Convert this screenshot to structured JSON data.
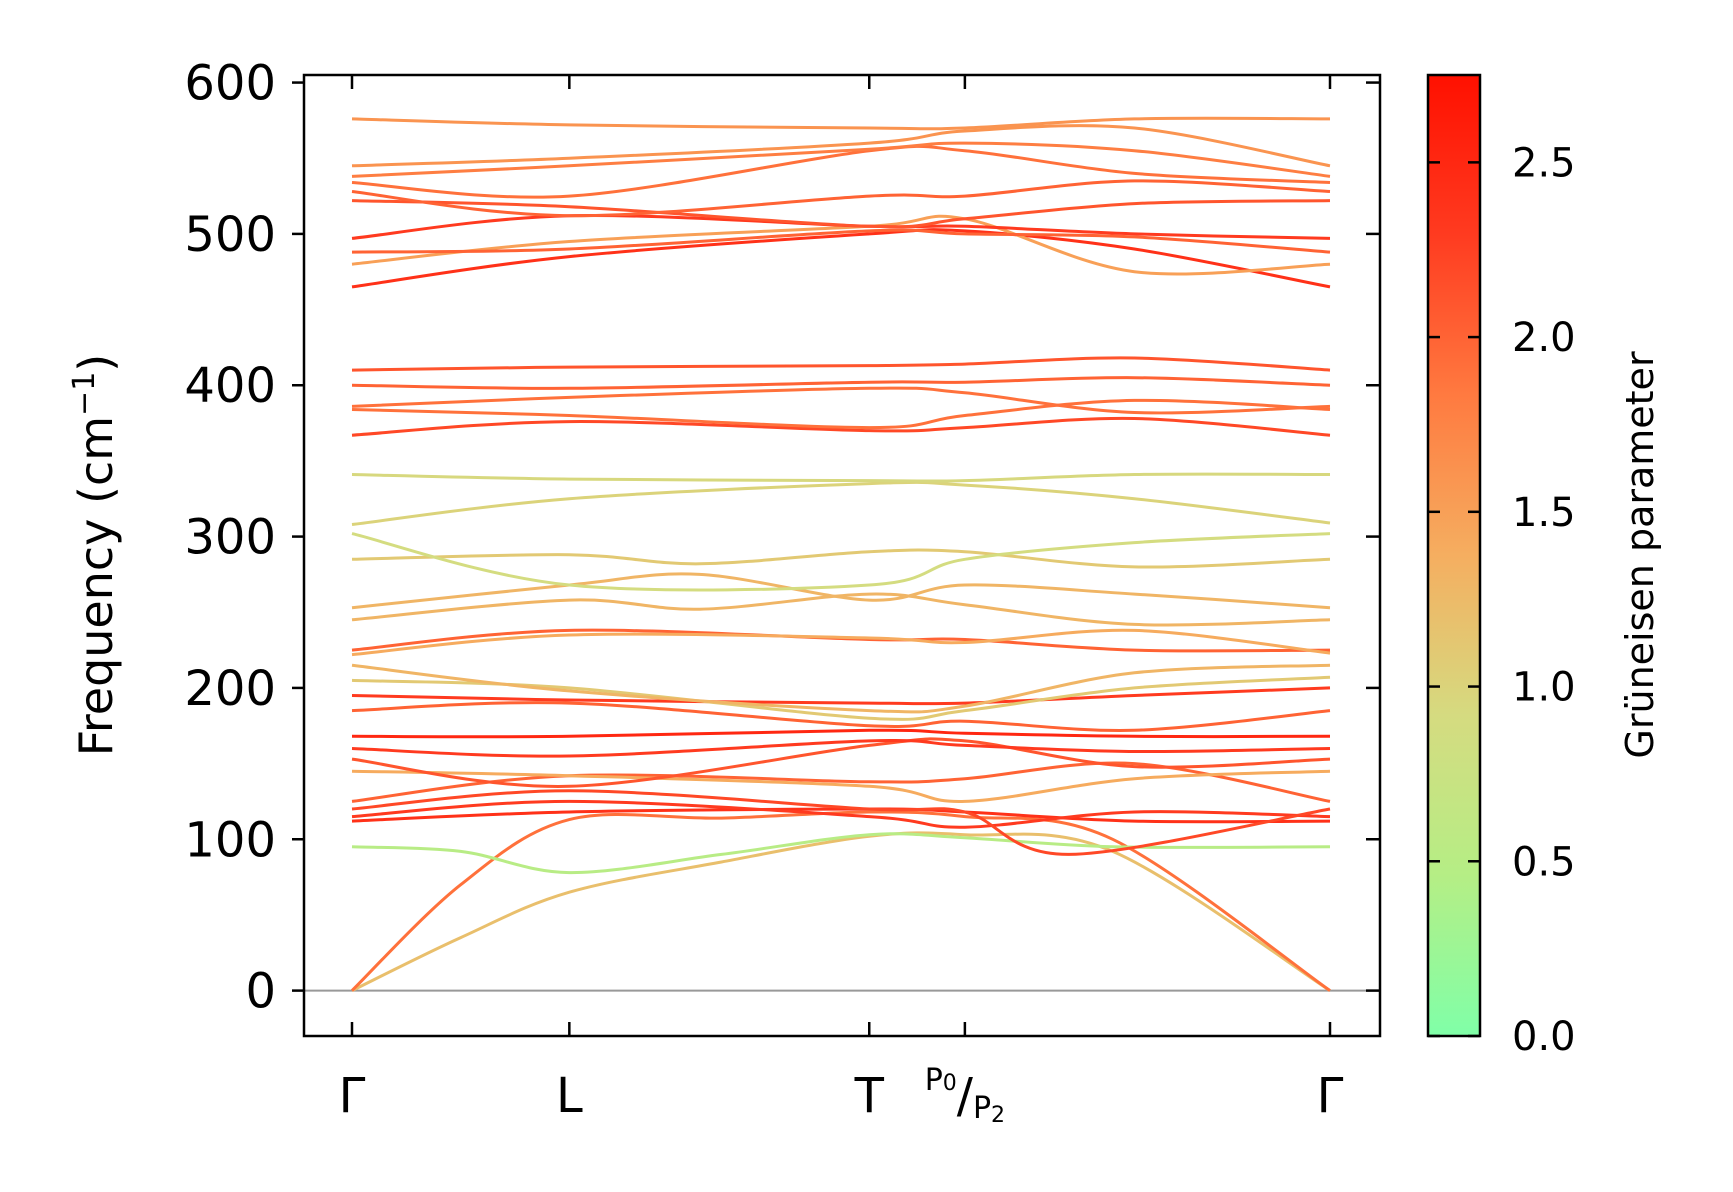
{
  "chart_data": {
    "type": "line",
    "title": "",
    "xlabel": "",
    "ylabel": "Frequency (cm",
    "ylabel_exp": "−1",
    "ylabel_close": ")",
    "ylim": [
      -30,
      605
    ],
    "yticks": [
      0,
      100,
      200,
      300,
      400,
      500,
      600
    ],
    "x_points": [
      0,
      1,
      2.38,
      2.82,
      4.5
    ],
    "x_labels": [
      "Γ",
      "L",
      "T",
      "P0/P2",
      "Γ"
    ],
    "x_label_special": {
      "p0": "P",
      "p0_sub": "0",
      "slash": "/",
      "p2": "P",
      "p2_sub": "2"
    },
    "colorbar": {
      "label": "Grüneisen parameter",
      "range": [
        0.0,
        2.75
      ],
      "ticks": [
        "0.0",
        "0.5",
        "1.0",
        "1.5",
        "2.0",
        "2.5"
      ],
      "tick_values": [
        0.0,
        0.5,
        1.0,
        1.5,
        2.0,
        2.5
      ],
      "colors": [
        "#80ffa8",
        "#b5ee85",
        "#d5db80",
        "#f5ae60",
        "#ff7a40",
        "#ff3b20",
        "#ff1000"
      ]
    },
    "series": [
      {
        "name": "band-1",
        "g": 1.2,
        "x": [
          0,
          0.5,
          1,
          1.7,
          2.38,
          2.82,
          3.5,
          4.5
        ],
        "y": [
          0,
          35,
          65,
          85,
          102,
          103,
          92,
          0
        ]
      },
      {
        "name": "band-2",
        "g": 1.9,
        "x": [
          0,
          0.5,
          1,
          1.7,
          2.38,
          2.82,
          3.5,
          4.5
        ],
        "y": [
          0,
          70,
          113,
          114,
          118,
          115,
          100,
          0
        ]
      },
      {
        "name": "band-3",
        "g": 0.5,
        "x": [
          0,
          0.5,
          1,
          1.7,
          2.38,
          2.82,
          3.5,
          4.5
        ],
        "y": [
          95,
          92,
          78,
          90,
          103,
          101,
          95,
          95
        ]
      },
      {
        "name": "band-4",
        "g": 2.4,
        "x": [
          0,
          1,
          2.38,
          2.82,
          3.6,
          4.5
        ],
        "y": [
          112,
          118,
          120,
          118,
          112,
          112
        ]
      },
      {
        "name": "band-5",
        "g": 2.3,
        "x": [
          0,
          1,
          2.38,
          2.82,
          3.6,
          4.5
        ],
        "y": [
          115,
          125,
          115,
          108,
          118,
          115
        ]
      },
      {
        "name": "band-6",
        "g": 2.2,
        "x": [
          0,
          1,
          2.38,
          2.82,
          3.3,
          4.5
        ],
        "y": [
          120,
          132,
          120,
          118,
          90,
          120
        ]
      },
      {
        "name": "band-7",
        "g": 2.0,
        "x": [
          0,
          1,
          2.38,
          2.82,
          3.6,
          4.5
        ],
        "y": [
          125,
          142,
          138,
          140,
          150,
          125
        ]
      },
      {
        "name": "band-8",
        "g": 1.4,
        "x": [
          0,
          1,
          2.38,
          2.82,
          3.6,
          4.5
        ],
        "y": [
          145,
          142,
          135,
          125,
          140,
          145
        ]
      },
      {
        "name": "band-9",
        "g": 2.1,
        "x": [
          0,
          1,
          2.38,
          2.82,
          3.6,
          4.5
        ],
        "y": [
          153,
          135,
          162,
          165,
          148,
          153
        ]
      },
      {
        "name": "band-10",
        "g": 2.3,
        "x": [
          0,
          1,
          2.38,
          2.82,
          3.6,
          4.5
        ],
        "y": [
          160,
          155,
          165,
          162,
          158,
          160
        ]
      },
      {
        "name": "band-11",
        "g": 2.5,
        "x": [
          0,
          1,
          2.38,
          2.82,
          3.6,
          4.5
        ],
        "y": [
          168,
          168,
          172,
          170,
          168,
          168
        ]
      },
      {
        "name": "band-12",
        "g": 2.0,
        "x": [
          0,
          1,
          2.38,
          2.82,
          3.6,
          4.5
        ],
        "y": [
          185,
          190,
          175,
          178,
          172,
          185
        ]
      },
      {
        "name": "band-13",
        "g": 2.3,
        "x": [
          0,
          1,
          2.38,
          2.82,
          3.6,
          4.5
        ],
        "y": [
          195,
          192,
          190,
          190,
          195,
          200
        ]
      },
      {
        "name": "band-14",
        "g": 1.1,
        "x": [
          0,
          1,
          2.38,
          2.82,
          3.6,
          4.5
        ],
        "y": [
          205,
          200,
          180,
          185,
          200,
          207
        ]
      },
      {
        "name": "band-15",
        "g": 1.3,
        "x": [
          0,
          1,
          2.38,
          2.82,
          3.6,
          4.5
        ],
        "y": [
          215,
          198,
          185,
          188,
          210,
          215
        ]
      },
      {
        "name": "band-16",
        "g": 2.0,
        "x": [
          0,
          1,
          2.38,
          2.82,
          3.6,
          4.5
        ],
        "y": [
          225,
          238,
          232,
          232,
          225,
          225
        ]
      },
      {
        "name": "band-17",
        "g": 1.4,
        "x": [
          0,
          1,
          2.38,
          2.82,
          3.6,
          4.5
        ],
        "y": [
          222,
          235,
          233,
          230,
          238,
          223
        ]
      },
      {
        "name": "band-18",
        "g": 1.3,
        "x": [
          0,
          1,
          1.6,
          2.38,
          2.82,
          3.6,
          4.5
        ],
        "y": [
          245,
          258,
          252,
          262,
          255,
          242,
          245
        ]
      },
      {
        "name": "band-19",
        "g": 1.3,
        "x": [
          0,
          1,
          1.6,
          2.38,
          2.82,
          3.6,
          4.5
        ],
        "y": [
          253,
          268,
          275,
          258,
          268,
          262,
          253
        ]
      },
      {
        "name": "band-20",
        "g": 1.1,
        "x": [
          0,
          1,
          1.6,
          2.38,
          2.82,
          3.6,
          4.5
        ],
        "y": [
          285,
          288,
          282,
          290,
          290,
          280,
          285
        ]
      },
      {
        "name": "band-21",
        "g": 0.9,
        "x": [
          0,
          1,
          2.38,
          2.82,
          3.6,
          4.5
        ],
        "y": [
          302,
          268,
          268,
          285,
          296,
          302
        ]
      },
      {
        "name": "band-22",
        "g": 1.0,
        "x": [
          0,
          1,
          2.38,
          2.82,
          3.6,
          4.5
        ],
        "y": [
          308,
          325,
          335,
          334,
          325,
          309
        ]
      },
      {
        "name": "band-23",
        "g": 0.95,
        "x": [
          0,
          1,
          2.38,
          2.82,
          3.6,
          4.5
        ],
        "y": [
          341,
          338,
          337,
          337,
          341,
          341
        ]
      },
      {
        "name": "band-24",
        "g": 2.2,
        "x": [
          0,
          1,
          2.38,
          2.82,
          3.6,
          4.5
        ],
        "y": [
          367,
          376,
          370,
          372,
          378,
          367
        ]
      },
      {
        "name": "band-25",
        "g": 1.9,
        "x": [
          0,
          1,
          2.38,
          2.82,
          3.6,
          4.5
        ],
        "y": [
          384,
          380,
          372,
          380,
          390,
          384
        ]
      },
      {
        "name": "band-26",
        "g": 1.9,
        "x": [
          0,
          1,
          2.38,
          2.82,
          3.6,
          4.5
        ],
        "y": [
          386,
          392,
          398,
          395,
          382,
          386
        ]
      },
      {
        "name": "band-27",
        "g": 2.0,
        "x": [
          0,
          1,
          2.38,
          2.82,
          3.6,
          4.5
        ],
        "y": [
          400,
          398,
          402,
          402,
          405,
          400
        ]
      },
      {
        "name": "band-28",
        "g": 2.1,
        "x": [
          0,
          1,
          2.38,
          2.82,
          3.6,
          4.5
        ],
        "y": [
          410,
          412,
          413,
          414,
          418,
          410
        ]
      },
      {
        "name": "band-29",
        "g": 2.4,
        "x": [
          0,
          1,
          2.38,
          2.82,
          3.6,
          4.5
        ],
        "y": [
          465,
          485,
          500,
          502,
          490,
          465
        ]
      },
      {
        "name": "band-30",
        "g": 1.5,
        "x": [
          0,
          1,
          2.38,
          2.82,
          3.6,
          4.5
        ],
        "y": [
          480,
          495,
          505,
          510,
          475,
          480
        ]
      },
      {
        "name": "band-31",
        "g": 2.0,
        "x": [
          0,
          1,
          2.38,
          2.82,
          3.6,
          4.5
        ],
        "y": [
          488,
          490,
          502,
          500,
          498,
          488
        ]
      },
      {
        "name": "band-32",
        "g": 2.3,
        "x": [
          0,
          1,
          2.38,
          2.82,
          3.6,
          4.5
        ],
        "y": [
          497,
          512,
          505,
          505,
          500,
          497
        ]
      },
      {
        "name": "band-33",
        "g": 2.1,
        "x": [
          0,
          1,
          2.38,
          2.82,
          3.6,
          4.5
        ],
        "y": [
          522,
          518,
          505,
          510,
          520,
          522
        ]
      },
      {
        "name": "band-34",
        "g": 2.0,
        "x": [
          0,
          1,
          2.38,
          2.82,
          3.6,
          4.5
        ],
        "y": [
          528,
          512,
          525,
          525,
          535,
          528
        ]
      },
      {
        "name": "band-35",
        "g": 1.9,
        "x": [
          0,
          1,
          2.38,
          2.82,
          3.6,
          4.5
        ],
        "y": [
          534,
          525,
          555,
          555,
          540,
          534
        ]
      },
      {
        "name": "band-36",
        "g": 1.8,
        "x": [
          0,
          1,
          2.38,
          2.82,
          3.6,
          4.5
        ],
        "y": [
          538,
          545,
          556,
          560,
          555,
          538
        ]
      },
      {
        "name": "band-37",
        "g": 1.6,
        "x": [
          0,
          1,
          2.38,
          2.82,
          3.6,
          4.5
        ],
        "y": [
          545,
          550,
          560,
          568,
          570,
          545
        ]
      },
      {
        "name": "band-38",
        "g": 1.6,
        "x": [
          0,
          1,
          2.38,
          2.82,
          3.6,
          4.5
        ],
        "y": [
          576,
          572,
          570,
          570,
          576,
          576
        ]
      }
    ]
  }
}
